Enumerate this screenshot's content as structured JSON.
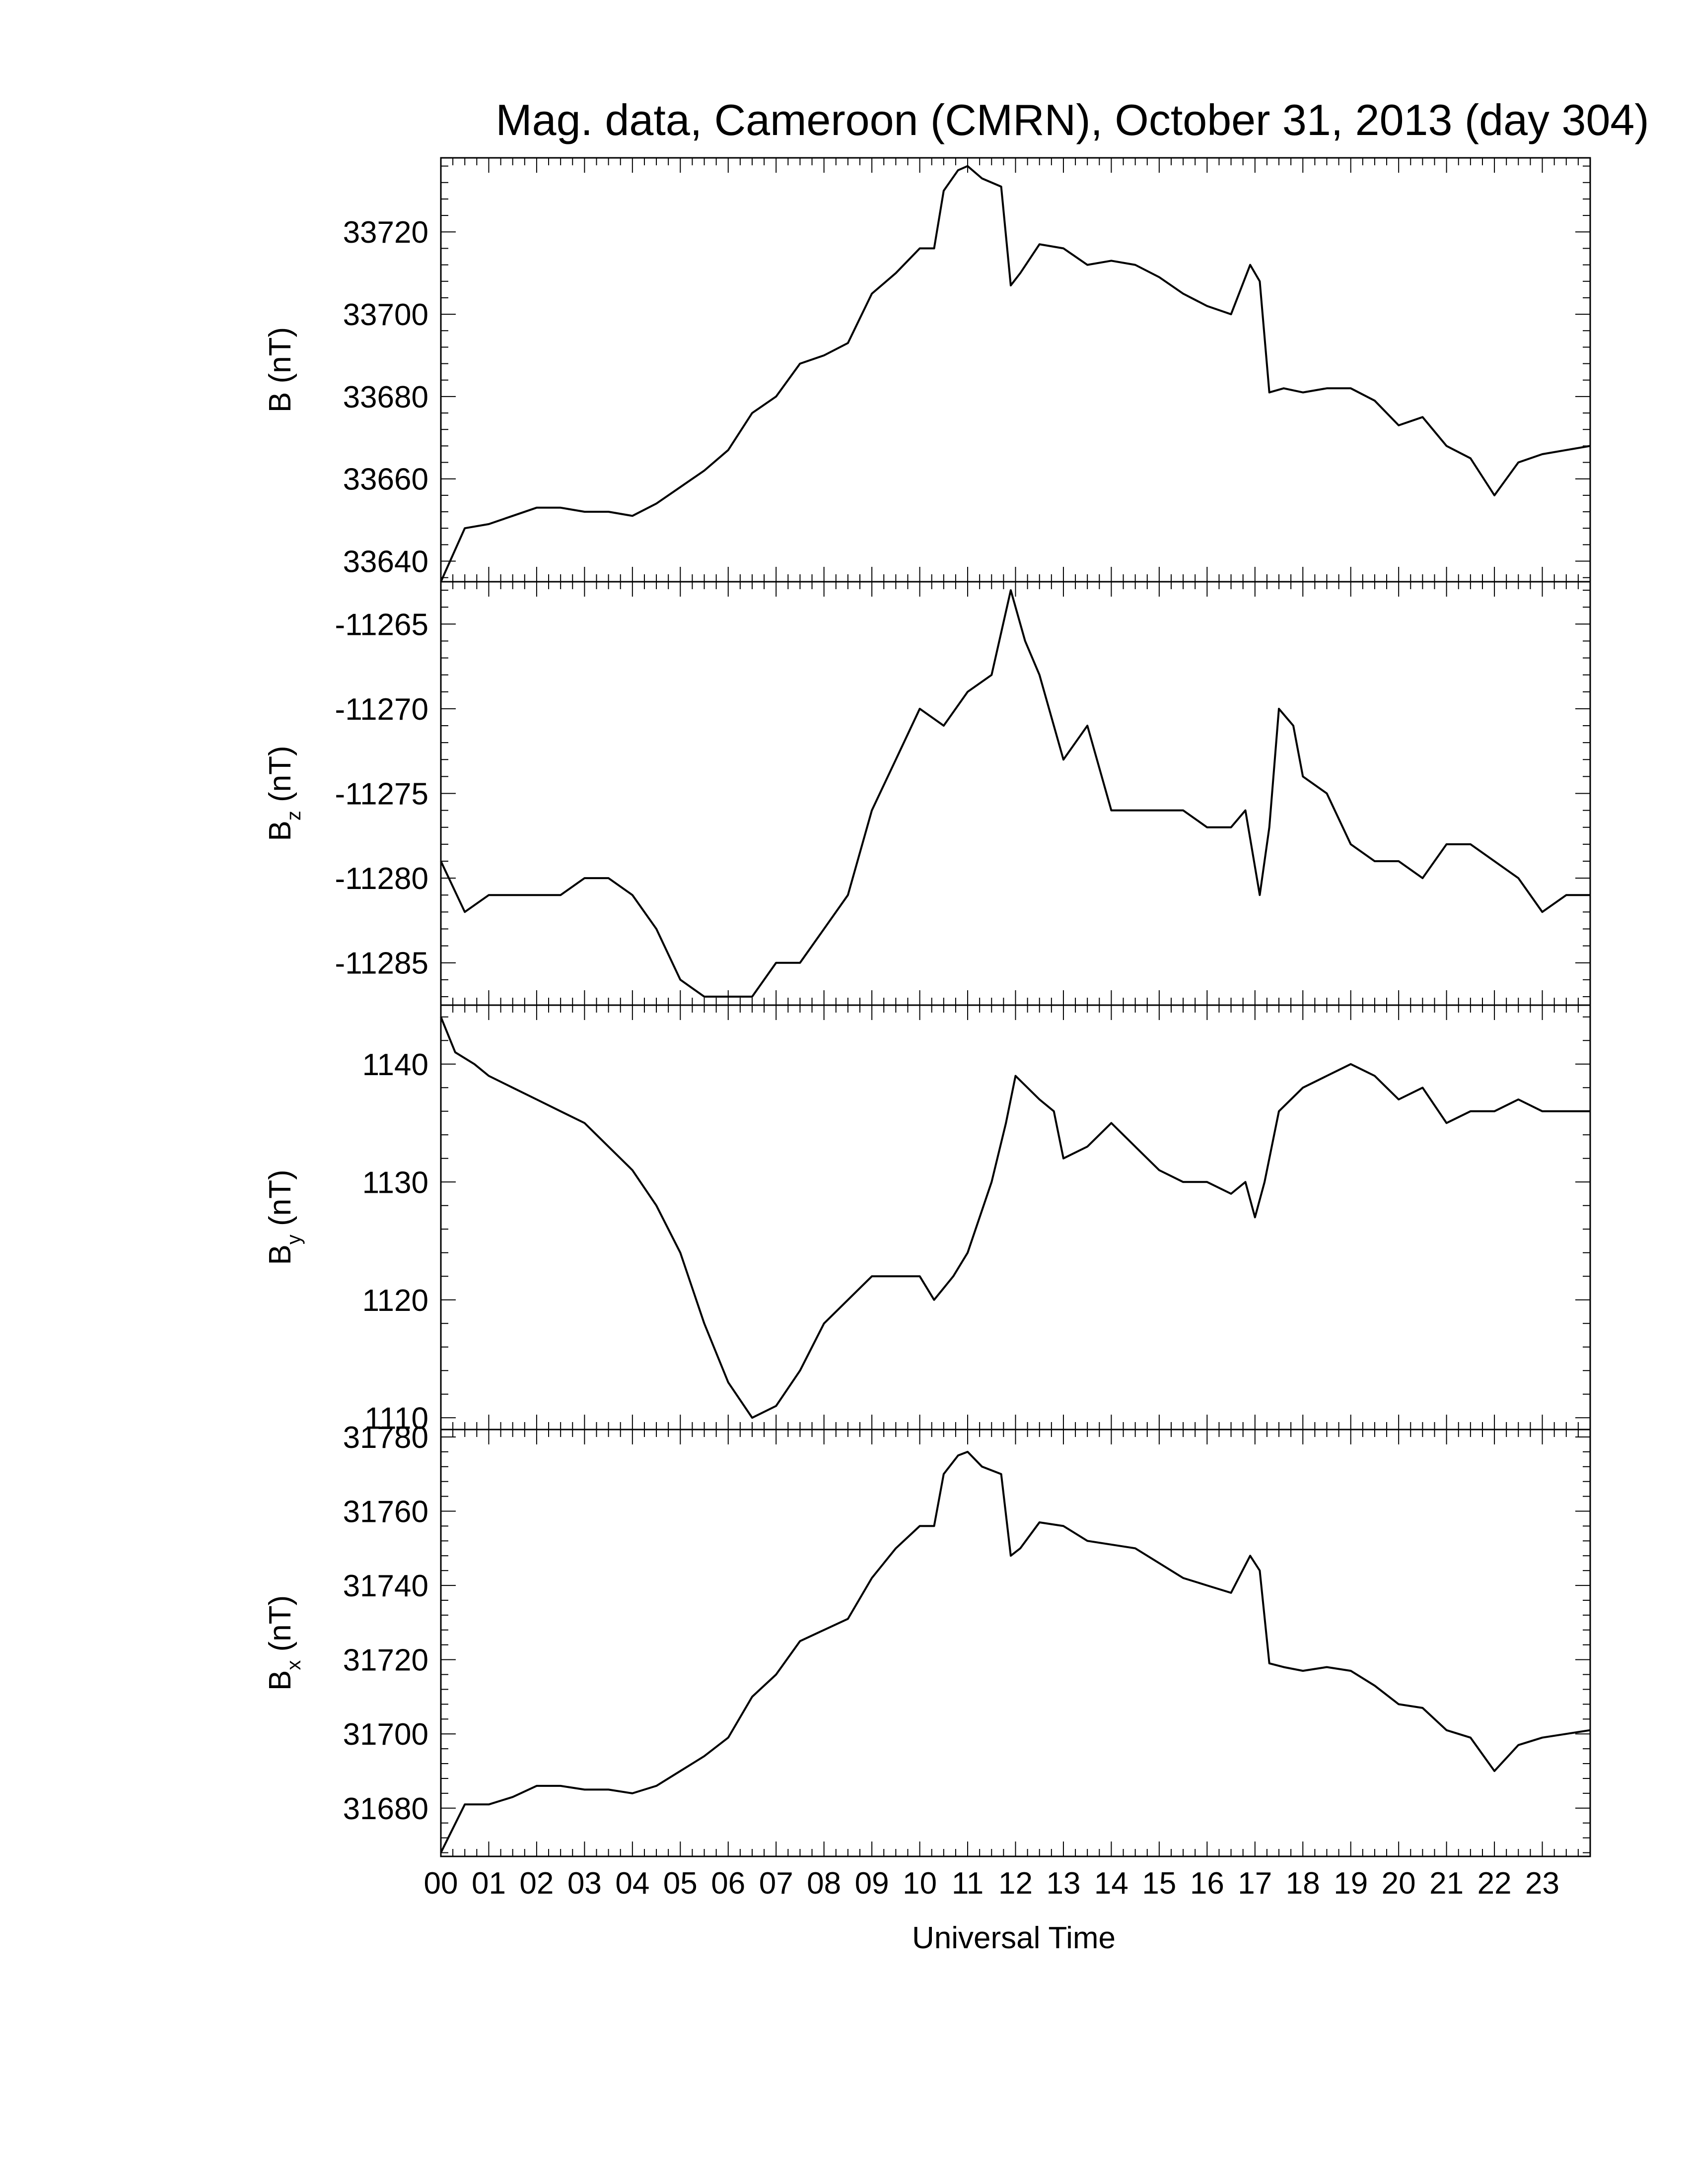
{
  "title": "Mag. data, Cameroon (CMRN), October 31, 2013 (day 304)",
  "xlabel": "Universal Time",
  "x_tick_labels": [
    "00",
    "01",
    "02",
    "03",
    "04",
    "05",
    "06",
    "07",
    "08",
    "09",
    "10",
    "11",
    "12",
    "13",
    "14",
    "15",
    "16",
    "17",
    "18",
    "19",
    "20",
    "21",
    "22",
    "23"
  ],
  "chart_data": [
    {
      "type": "line",
      "series": [
        {
          "x": [
            0,
            0.5,
            1,
            1.5,
            2,
            2.5,
            3,
            3.5,
            4,
            4.5,
            5,
            5.5,
            6,
            6.5,
            7,
            7.5,
            8,
            8.5,
            9,
            9.5,
            10,
            10.3,
            10.5,
            10.8,
            11,
            11.3,
            11.7,
            11.9,
            12.1,
            12.5,
            13,
            13.5,
            14,
            14.5,
            15,
            15.5,
            16,
            16.5,
            16.9,
            17.1,
            17.3,
            17.6,
            18,
            18.5,
            19,
            19.5,
            20,
            20.5,
            21,
            21.5,
            22,
            22.5,
            23,
            23.5,
            24
          ],
          "y": [
            33635,
            33648,
            33649,
            33651,
            33653,
            33653,
            33652,
            33652,
            33651,
            33654,
            33658,
            33662,
            33667,
            33676,
            33680,
            33688,
            33690,
            33693,
            33705,
            33710,
            33716,
            33716,
            33730,
            33735,
            33736,
            33733,
            33731,
            33707,
            33710,
            33717,
            33716,
            33712,
            33713,
            33712,
            33709,
            33705,
            33702,
            33700,
            33712,
            33708,
            33681,
            33682,
            33681,
            33682,
            33682,
            33679,
            33673,
            33675,
            33668,
            33665,
            33656,
            33664,
            33666,
            33667,
            33668
          ]
        }
      ],
      "ylabel": "B (nT)",
      "yticks": [
        33640,
        33660,
        33680,
        33700,
        33720
      ],
      "ylim": [
        33635,
        33738
      ],
      "xlim": [
        0,
        24
      ]
    },
    {
      "type": "line",
      "series": [
        {
          "x": [
            0,
            0.5,
            1,
            1.5,
            2,
            2.5,
            3,
            3.5,
            4,
            4.5,
            5,
            5.5,
            6,
            6.5,
            7,
            7.5,
            8,
            8.5,
            9,
            9.5,
            10,
            10.5,
            11,
            11.5,
            11.9,
            12.2,
            12.5,
            13,
            13.5,
            14,
            14.5,
            15,
            15.5,
            16,
            16.5,
            16.8,
            17.1,
            17.3,
            17.5,
            17.8,
            18,
            18.5,
            19,
            19.5,
            20,
            20.5,
            21,
            21.5,
            22,
            22.5,
            23,
            23.5,
            24
          ],
          "y": [
            -11279,
            -11282,
            -11281,
            -11281,
            -11281,
            -11281,
            -11280,
            -11280,
            -11281,
            -11283,
            -11286,
            -11287,
            -11287,
            -11287,
            -11285,
            -11285,
            -11283,
            -11281,
            -11276,
            -11273,
            -11270,
            -11271,
            -11269,
            -11268,
            -11263,
            -11266,
            -11268,
            -11273,
            -11271,
            -11276,
            -11276,
            -11276,
            -11276,
            -11277,
            -11277,
            -11276,
            -11281,
            -11277,
            -11270,
            -11271,
            -11274,
            -11275,
            -11278,
            -11279,
            -11279,
            -11280,
            -11278,
            -11278,
            -11279,
            -11280,
            -11282,
            -11281,
            -11281
          ]
        }
      ],
      "ylabel": "Bz (nT)",
      "yticks": [
        -11265,
        -11270,
        -11275,
        -11280,
        -11285
      ],
      "ylim": [
        -11287.5,
        -11262.5
      ],
      "xlim": [
        0,
        24
      ]
    },
    {
      "type": "line",
      "series": [
        {
          "x": [
            0,
            0.3,
            0.7,
            1,
            1.5,
            2,
            2.5,
            3,
            3.5,
            4,
            4.5,
            5,
            5.5,
            6,
            6.5,
            7,
            7.5,
            8,
            8.5,
            9,
            9.5,
            10,
            10.3,
            10.7,
            11,
            11.5,
            11.8,
            12,
            12.5,
            12.8,
            13,
            13.5,
            14,
            14.5,
            15,
            15.5,
            16,
            16.5,
            16.8,
            17,
            17.2,
            17.5,
            18,
            18.5,
            19,
            19.5,
            20,
            20.5,
            21,
            21.5,
            22,
            22.5,
            23,
            23.5,
            24
          ],
          "y": [
            1144,
            1141,
            1140,
            1139,
            1138,
            1137,
            1136,
            1135,
            1133,
            1131,
            1128,
            1124,
            1118,
            1113,
            1110,
            1111,
            1114,
            1118,
            1120,
            1122,
            1122,
            1122,
            1120,
            1122,
            1124,
            1130,
            1135,
            1139,
            1137,
            1136,
            1132,
            1133,
            1135,
            1133,
            1131,
            1130,
            1130,
            1129,
            1130,
            1127,
            1130,
            1136,
            1138,
            1139,
            1140,
            1139,
            1137,
            1138,
            1135,
            1136,
            1136,
            1137,
            1136,
            1136,
            1136
          ]
        }
      ],
      "ylabel": "By (nT)",
      "yticks": [
        1110,
        1120,
        1130,
        1140
      ],
      "ylim": [
        1109,
        1145
      ],
      "xlim": [
        0,
        24
      ]
    },
    {
      "type": "line",
      "series": [
        {
          "x": [
            0,
            0.5,
            1,
            1.5,
            2,
            2.5,
            3,
            3.5,
            4,
            4.5,
            5,
            5.5,
            6,
            6.5,
            7,
            7.5,
            8,
            8.5,
            9,
            9.5,
            10,
            10.3,
            10.5,
            10.8,
            11,
            11.3,
            11.7,
            11.9,
            12.1,
            12.5,
            13,
            13.5,
            14,
            14.5,
            15,
            15.5,
            16,
            16.5,
            16.9,
            17.1,
            17.3,
            17.6,
            18,
            18.5,
            19,
            19.5,
            20,
            20.5,
            21,
            21.5,
            22,
            22.5,
            23,
            23.5,
            24
          ],
          "y": [
            31668,
            31681,
            31681,
            31683,
            31686,
            31686,
            31685,
            31685,
            31684,
            31686,
            31690,
            31694,
            31699,
            31710,
            31716,
            31725,
            31728,
            31731,
            31742,
            31750,
            31756,
            31756,
            31770,
            31775,
            31776,
            31772,
            31770,
            31748,
            31750,
            31757,
            31756,
            31752,
            31751,
            31750,
            31746,
            31742,
            31740,
            31738,
            31748,
            31744,
            31719,
            31718,
            31717,
            31718,
            31717,
            31713,
            31708,
            31707,
            31701,
            31699,
            31690,
            31697,
            31699,
            31700,
            31701
          ]
        }
      ],
      "ylabel": "Bx (nT)",
      "yticks": [
        31680,
        31700,
        31720,
        31740,
        31760,
        31780
      ],
      "ylim": [
        31667,
        31782
      ],
      "xlim": [
        0,
        24
      ]
    }
  ]
}
